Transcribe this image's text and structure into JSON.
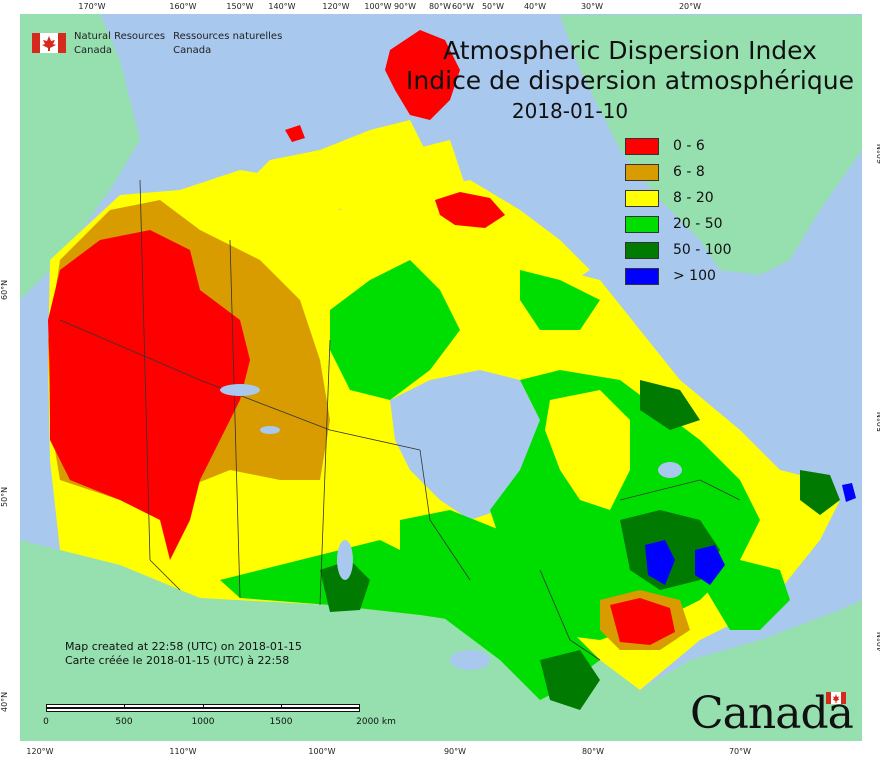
{
  "title": {
    "en": "Atmospheric Dispersion Index",
    "fr": "Indice de dispersion atmosphérique",
    "date": "2018-01-10"
  },
  "agency": {
    "en_line1": "Natural Resources",
    "en_line2": "Canada",
    "fr_line1": "Ressources naturelles",
    "fr_line2": "Canada",
    "flag_icon": "canada-flag-icon"
  },
  "legend": {
    "items": [
      {
        "label": "0 - 6",
        "color": "#ff0000"
      },
      {
        "label": "6 - 8",
        "color": "#d89c00"
      },
      {
        "label": "8 - 20",
        "color": "#ffff00"
      },
      {
        "label": "20 - 50",
        "color": "#00dd00"
      },
      {
        "label": "50 - 100",
        "color": "#007a00"
      },
      {
        "label": "> 100",
        "color": "#0000ff"
      }
    ]
  },
  "credit": {
    "en": "Map created at 22:58 (UTC) on 2018-01-15",
    "fr": "Carte créée le 2018-01-15 (UTC) à 22:58"
  },
  "scale_bar": {
    "labels": [
      "0",
      "500",
      "1000",
      "1500",
      "2000 km"
    ]
  },
  "wordmark": "Canada",
  "graticule": {
    "top": [
      "170°W",
      "160°W",
      "150°W",
      "140°W",
      "120°W",
      "100°W",
      "90°W",
      "80°W",
      "60°W",
      "50°W",
      "40°W",
      "30°W",
      "20°W"
    ],
    "bottom": [
      "120°W",
      "110°W",
      "100°W",
      "90°W",
      "80°W",
      "70°W"
    ],
    "left": [
      "60°N",
      "50°N",
      "40°N"
    ],
    "right": [
      "60°N",
      "50°N",
      "40°N"
    ]
  },
  "colors": {
    "ocean": "#a8c8ee",
    "land_outside": "#96e0b0",
    "border": "#333333"
  }
}
